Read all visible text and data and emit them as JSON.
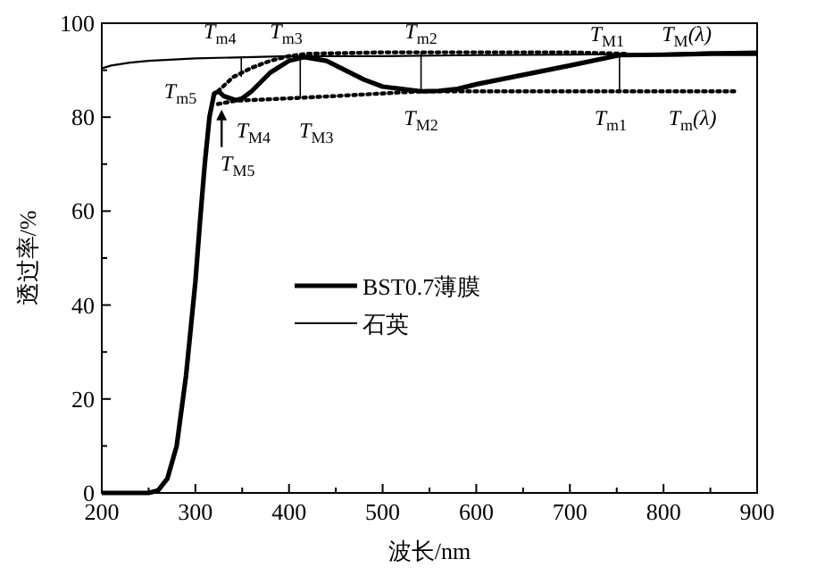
{
  "chart_data": {
    "type": "line",
    "xlabel": "波长/nm",
    "ylabel": "透过率/%",
    "xlim": [
      200,
      900
    ],
    "ylim": [
      0,
      100
    ],
    "xticks": [
      200,
      300,
      400,
      500,
      600,
      700,
      800,
      900
    ],
    "yticks": [
      0,
      20,
      40,
      60,
      80,
      100
    ],
    "grid": false,
    "legend": "center",
    "marker": "none",
    "series": [
      {
        "name": "BST0.7薄膜",
        "color": "#000000",
        "line_style": "solid",
        "x": [
          200,
          230,
          250,
          260,
          270,
          280,
          290,
          300,
          305,
          310,
          315,
          320,
          325,
          330,
          343,
          350,
          360,
          380,
          400,
          416,
          440,
          460,
          480,
          500,
          520,
          541,
          560,
          580,
          600,
          650,
          700,
          753,
          800,
          850,
          900
        ],
        "values": [
          0,
          0,
          0,
          0.5,
          3,
          10,
          25,
          45,
          58,
          70,
          80,
          85,
          85.5,
          84.5,
          83.6,
          84,
          85.5,
          89.5,
          92,
          92.8,
          92,
          90,
          88,
          86.5,
          86,
          85.5,
          85.6,
          86,
          87,
          89,
          91,
          93.2,
          93.3,
          93.5,
          93.5
        ]
      },
      {
        "name": "石英",
        "color": "#000000",
        "line_style": "solid",
        "x": [
          200,
          210,
          230,
          250,
          300,
          400,
          500,
          600,
          700,
          800,
          850,
          900
        ],
        "values": [
          90.4,
          91,
          91.6,
          92,
          92.5,
          93,
          93,
          93.2,
          93.3,
          93.5,
          93.8,
          94
        ]
      },
      {
        "color": "#000000",
        "line_style": "dotted",
        "x": [
          324,
          340,
          360,
          380,
          400,
          420,
          500,
          600,
          700,
          760
        ],
        "values": [
          85.5,
          88.5,
          90.5,
          92,
          93,
          93.5,
          93.8,
          93.8,
          93.8,
          93.5
        ]
      },
      {
        "color": "#000000",
        "line_style": "dotted",
        "x": [
          324,
          343,
          400,
          450,
          541,
          600,
          700,
          880
        ],
        "values": [
          82.8,
          83.5,
          84,
          84.5,
          85.5,
          85.5,
          85.5,
          85.5
        ]
      },
      {
        "color": "#000000",
        "line_style": "solid",
        "x": [
          349,
          349
        ],
        "values": [
          93,
          88.6
        ]
      },
      {
        "color": "#000000",
        "line_style": "solid",
        "x": [
          412,
          412
        ],
        "values": [
          92.5,
          84
        ]
      },
      {
        "color": "#000000",
        "line_style": "solid",
        "x": [
          541,
          541
        ],
        "values": [
          93.8,
          85.5
        ]
      },
      {
        "color": "#000000",
        "line_style": "solid",
        "x": [
          753,
          753
        ],
        "values": [
          93.2,
          85.5
        ]
      }
    ],
    "annotations": [
      {
        "text": "T$_{m4}$",
        "x": 349,
        "y": 93
      },
      {
        "text": "T$_{m3}$",
        "x": 416,
        "y": 93
      },
      {
        "text": "T$_{m2}$",
        "x": 541,
        "y": 93.8
      },
      {
        "text": "T$_{M1}$",
        "x": 753,
        "y": 93.2
      },
      {
        "text": "T$_{M}$(λ)",
        "x": 800,
        "y": 93.5
      },
      {
        "text": "T$_{m5}$",
        "x": 324,
        "y": 85.5
      },
      {
        "text": "T$_{M4}$",
        "x": 343,
        "y": 83.6
      },
      {
        "text": "T$_{M3}$",
        "x": 412,
        "y": 84
      },
      {
        "text": "T$_{M2}$",
        "x": 541,
        "y": 85.5
      },
      {
        "text": "T$_{m1}$",
        "x": 753,
        "y": 85.5
      },
      {
        "text": "T$_{m}$(λ)",
        "x": 850,
        "y": 85.5
      },
      {
        "text": "T$_{M5}$",
        "x": 328,
        "y": 82
      }
    ]
  }
}
